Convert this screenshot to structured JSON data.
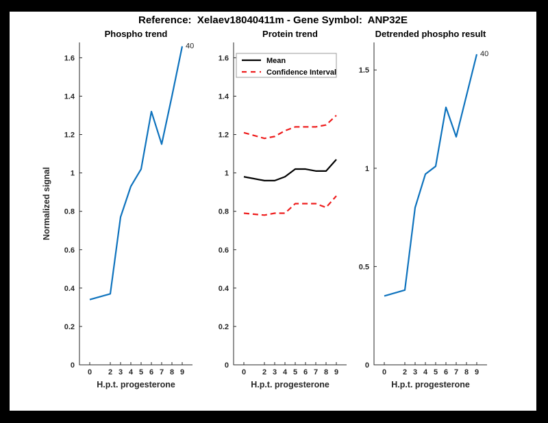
{
  "figure": {
    "title": "Reference:  Xelaev18040411m - Gene Symbol:  ANP32E",
    "background_color": "#000000",
    "canvas_color": "#ffffff",
    "axis_color": "#262626",
    "blue_color": "#0d72bd",
    "red_color": "#ee1c1c"
  },
  "chart_data": [
    {
      "id": "phospho-trend",
      "type": "line",
      "title": "Phospho trend",
      "xlabel": "H.p.t. progesterone",
      "ylabel": "Normalized signal",
      "x": [
        0,
        2,
        3,
        4,
        5,
        6,
        7,
        8,
        9
      ],
      "xticks": [
        0,
        2,
        3,
        4,
        5,
        6,
        7,
        8,
        9
      ],
      "yticks": [
        0,
        0.2,
        0.4,
        0.6,
        0.8,
        1,
        1.2,
        1.4,
        1.6
      ],
      "xlim": [
        -1,
        10
      ],
      "ylim": [
        0,
        1.68
      ],
      "grid": false,
      "series": [
        {
          "name": "phospho-signal",
          "color": "#0d72bd",
          "style": "solid",
          "values": [
            0.34,
            0.37,
            0.77,
            0.93,
            1.02,
            1.32,
            1.15,
            1.4,
            1.66
          ]
        }
      ],
      "end_label": "40",
      "legend": null
    },
    {
      "id": "protein-trend",
      "type": "line",
      "title": "Protein trend",
      "xlabel": "H.p.t. progesterone",
      "ylabel": "",
      "x": [
        0,
        2,
        3,
        4,
        5,
        6,
        7,
        8,
        9
      ],
      "xticks": [
        0,
        2,
        3,
        4,
        5,
        6,
        7,
        8,
        9
      ],
      "yticks": [
        0,
        0.2,
        0.4,
        0.6,
        0.8,
        1,
        1.2,
        1.4,
        1.6
      ],
      "xlim": [
        -1,
        10
      ],
      "ylim": [
        0,
        1.68
      ],
      "grid": false,
      "series": [
        {
          "name": "mean",
          "color": "#000000",
          "style": "solid",
          "values": [
            0.98,
            0.96,
            0.96,
            0.98,
            1.02,
            1.02,
            1.01,
            1.01,
            1.07
          ]
        },
        {
          "name": "confidence-upper",
          "color": "#ee1c1c",
          "style": "dashed",
          "values": [
            1.21,
            1.18,
            1.19,
            1.22,
            1.24,
            1.24,
            1.24,
            1.25,
            1.3
          ]
        },
        {
          "name": "confidence-lower",
          "color": "#ee1c1c",
          "style": "dashed",
          "values": [
            0.79,
            0.78,
            0.79,
            0.79,
            0.84,
            0.84,
            0.84,
            0.82,
            0.88
          ]
        }
      ],
      "end_label": null,
      "legend": {
        "position": "upper-left",
        "entries": [
          {
            "label": "Mean",
            "color": "#000000",
            "style": "solid"
          },
          {
            "label": "Confidence Interval",
            "color": "#ee1c1c",
            "style": "dashed"
          }
        ]
      }
    },
    {
      "id": "detrended-phospho-result",
      "type": "line",
      "title": "Detrended phospho result",
      "xlabel": "H.p.t. progesterone",
      "ylabel": "",
      "x": [
        0,
        2,
        3,
        4,
        5,
        6,
        7,
        8,
        9
      ],
      "xticks": [
        0,
        2,
        3,
        4,
        5,
        6,
        7,
        8,
        9
      ],
      "yticks": [
        0,
        0.5,
        1,
        1.5
      ],
      "xlim": [
        -1,
        10
      ],
      "ylim": [
        0,
        1.64
      ],
      "grid": false,
      "series": [
        {
          "name": "detrended-signal",
          "color": "#0d72bd",
          "style": "solid",
          "values": [
            0.35,
            0.38,
            0.8,
            0.97,
            1.01,
            1.31,
            1.16,
            1.37,
            1.58
          ]
        }
      ],
      "end_label": "40",
      "legend": null
    }
  ]
}
